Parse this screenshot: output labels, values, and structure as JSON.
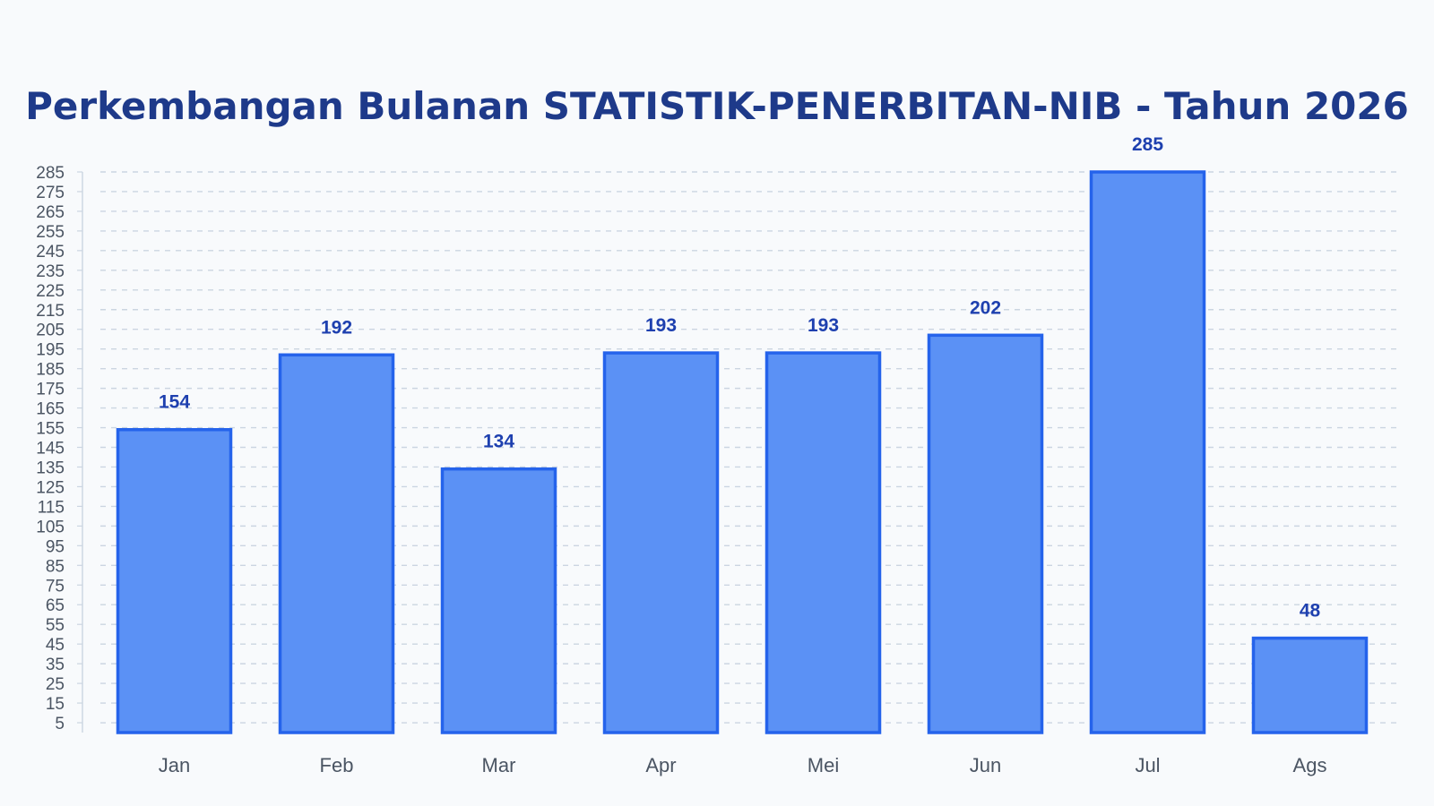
{
  "title": "Perkembangan Bulanan STATISTIK-PENERBITAN-NIB - Tahun 2026",
  "colors": {
    "background": "#f8fafc",
    "title": "#1e3a8a",
    "bar_fill": "#5b91f5",
    "bar_stroke": "#2563eb",
    "value_label": "#1e40af",
    "grid": "#cbd5e1",
    "axis": "#cbd5e1",
    "tick_text": "#4b5563"
  },
  "chart_data": {
    "type": "bar",
    "title": "Perkembangan Bulanan STATISTIK-PENERBITAN-NIB - Tahun 2026",
    "xlabel": "",
    "ylabel": "",
    "categories": [
      "Jan",
      "Feb",
      "Mar",
      "Apr",
      "Mei",
      "Jun",
      "Jul",
      "Ags"
    ],
    "values": [
      154,
      192,
      134,
      193,
      193,
      202,
      285,
      48
    ],
    "ylim": [
      0,
      285
    ],
    "yticks": [
      5,
      15,
      25,
      35,
      45,
      55,
      65,
      75,
      85,
      95,
      105,
      115,
      125,
      135,
      145,
      155,
      165,
      175,
      185,
      195,
      205,
      215,
      225,
      235,
      245,
      255,
      265,
      275,
      285
    ],
    "grid": true,
    "grid_style": "dashed",
    "legend": "none",
    "data_labels": true
  }
}
